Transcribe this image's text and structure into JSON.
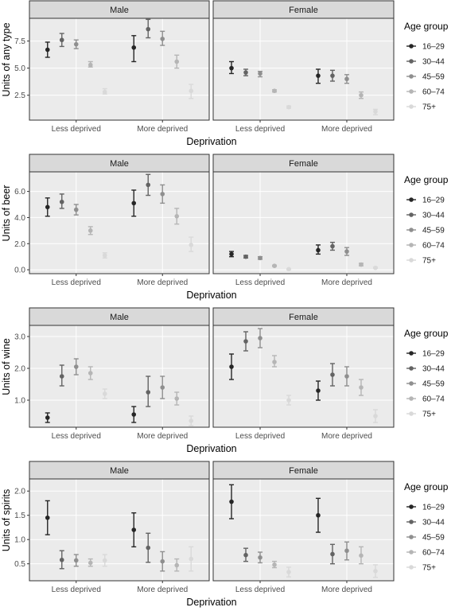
{
  "colors": {
    "panel_bg": "#ebebeb",
    "grid_major": "#ffffff",
    "strip_bg": "#d9d9d9",
    "strip_border": "#333333",
    "age_16_29": "#262626",
    "age_30_44": "#636363",
    "age_45_59": "#8f8f8f",
    "age_60_74": "#b5b5b5",
    "age_75_plus": "#d9d9d9"
  },
  "chart_data": [
    {
      "type": "scatter",
      "ylabel": "Units of any type",
      "xlabel": "Deprivation",
      "categories": [
        "Less deprived",
        "More deprived"
      ],
      "ylim": [
        0.2,
        9.6
      ],
      "yticks": [
        2.5,
        5.0,
        7.5
      ],
      "ytick_labels": [
        "2.5",
        "5.0",
        "7.5"
      ],
      "legend_title": "Age group",
      "panels": [
        {
          "label": "Male",
          "series": [
            {
              "name": "16–29",
              "values": [
                6.7,
                6.9
              ],
              "lower": [
                6.0,
                5.6
              ],
              "upper": [
                7.4,
                8.0
              ]
            },
            {
              "name": "30–44",
              "values": [
                7.6,
                8.6
              ],
              "lower": [
                7.0,
                7.8
              ],
              "upper": [
                8.2,
                9.5
              ]
            },
            {
              "name": "45–59",
              "values": [
                7.2,
                7.7
              ],
              "lower": [
                6.8,
                7.1
              ],
              "upper": [
                7.6,
                8.4
              ]
            },
            {
              "name": "60–74",
              "values": [
                5.3,
                5.6
              ],
              "lower": [
                5.1,
                5.0
              ],
              "upper": [
                5.6,
                6.2
              ]
            },
            {
              "name": "75+",
              "values": [
                2.8,
                2.9
              ],
              "lower": [
                2.6,
                2.2
              ],
              "upper": [
                3.1,
                3.5
              ]
            }
          ]
        },
        {
          "label": "Female",
          "series": [
            {
              "name": "16–29",
              "values": [
                5.0,
                4.3
              ],
              "lower": [
                4.5,
                3.6
              ],
              "upper": [
                5.6,
                4.9
              ]
            },
            {
              "name": "30–44",
              "values": [
                4.6,
                4.3
              ],
              "lower": [
                4.3,
                3.8
              ],
              "upper": [
                4.9,
                4.8
              ]
            },
            {
              "name": "45–59",
              "values": [
                4.5,
                4.0
              ],
              "lower": [
                4.2,
                3.6
              ],
              "upper": [
                4.7,
                4.4
              ]
            },
            {
              "name": "60–74",
              "values": [
                2.9,
                2.5
              ],
              "lower": [
                2.8,
                2.2
              ],
              "upper": [
                3.0,
                2.8
              ]
            },
            {
              "name": "75+",
              "values": [
                1.4,
                1.0
              ],
              "lower": [
                1.3,
                0.7
              ],
              "upper": [
                1.5,
                1.2
              ]
            }
          ]
        }
      ]
    },
    {
      "type": "scatter",
      "ylabel": "Units of beer",
      "xlabel": "Deprivation",
      "categories": [
        "Less deprived",
        "More deprived"
      ],
      "ylim": [
        -0.3,
        7.5
      ],
      "yticks": [
        0.0,
        2.0,
        4.0,
        6.0
      ],
      "ytick_labels": [
        "0.0",
        "2.0",
        "4.0",
        "6.0"
      ],
      "legend_title": "Age group",
      "panels": [
        {
          "label": "Male",
          "series": [
            {
              "name": "16–29",
              "values": [
                4.8,
                5.1
              ],
              "lower": [
                4.1,
                4.1
              ],
              "upper": [
                5.5,
                6.1
              ]
            },
            {
              "name": "30–44",
              "values": [
                5.2,
                6.5
              ],
              "lower": [
                4.7,
                5.7
              ],
              "upper": [
                5.8,
                7.3
              ]
            },
            {
              "name": "45–59",
              "values": [
                4.6,
                5.8
              ],
              "lower": [
                4.2,
                5.1
              ],
              "upper": [
                5.0,
                6.5
              ]
            },
            {
              "name": "60–74",
              "values": [
                3.0,
                4.1
              ],
              "lower": [
                2.7,
                3.5
              ],
              "upper": [
                3.3,
                4.7
              ]
            },
            {
              "name": "75+",
              "values": [
                1.1,
                1.9
              ],
              "lower": [
                0.9,
                1.4
              ],
              "upper": [
                1.3,
                2.5
              ]
            }
          ]
        },
        {
          "label": "Female",
          "series": [
            {
              "name": "16–29",
              "values": [
                1.2,
                1.5
              ],
              "lower": [
                1.0,
                1.2
              ],
              "upper": [
                1.4,
                1.9
              ]
            },
            {
              "name": "30–44",
              "values": [
                1.0,
                1.8
              ],
              "lower": [
                0.9,
                1.5
              ],
              "upper": [
                1.1,
                2.1
              ]
            },
            {
              "name": "45–59",
              "values": [
                0.9,
                1.4
              ],
              "lower": [
                0.8,
                1.1
              ],
              "upper": [
                1.0,
                1.7
              ]
            },
            {
              "name": "60–74",
              "values": [
                0.3,
                0.4
              ],
              "lower": [
                0.25,
                0.3
              ],
              "upper": [
                0.35,
                0.5
              ]
            },
            {
              "name": "75+",
              "values": [
                0.05,
                0.15
              ],
              "lower": [
                0.02,
                0.1
              ],
              "upper": [
                0.08,
                0.2
              ]
            }
          ]
        }
      ]
    },
    {
      "type": "scatter",
      "ylabel": "Units of wine",
      "xlabel": "Deprivation",
      "categories": [
        "Less deprived",
        "More deprived"
      ],
      "ylim": [
        0.15,
        3.35
      ],
      "yticks": [
        1.0,
        2.0,
        3.0
      ],
      "ytick_labels": [
        "1.0",
        "2.0",
        "3.0"
      ],
      "legend_title": "Age group",
      "panels": [
        {
          "label": "Male",
          "series": [
            {
              "name": "16–29",
              "values": [
                0.45,
                0.55
              ],
              "lower": [
                0.3,
                0.3
              ],
              "upper": [
                0.6,
                0.8
              ]
            },
            {
              "name": "30–44",
              "values": [
                1.75,
                1.25
              ],
              "lower": [
                1.45,
                0.8
              ],
              "upper": [
                2.1,
                1.75
              ]
            },
            {
              "name": "45–59",
              "values": [
                2.05,
                1.4
              ],
              "lower": [
                1.8,
                1.05
              ],
              "upper": [
                2.3,
                1.75
              ]
            },
            {
              "name": "60–74",
              "values": [
                1.85,
                1.05
              ],
              "lower": [
                1.65,
                0.85
              ],
              "upper": [
                2.05,
                1.25
              ]
            },
            {
              "name": "75+",
              "values": [
                1.2,
                0.35
              ],
              "lower": [
                1.05,
                0.2
              ],
              "upper": [
                1.35,
                0.5
              ]
            }
          ]
        },
        {
          "label": "Female",
          "series": [
            {
              "name": "16–29",
              "values": [
                2.05,
                1.3
              ],
              "lower": [
                1.65,
                1.0
              ],
              "upper": [
                2.45,
                1.6
              ]
            },
            {
              "name": "30–44",
              "values": [
                2.85,
                1.8
              ],
              "lower": [
                2.55,
                1.45
              ],
              "upper": [
                3.15,
                2.15
              ]
            },
            {
              "name": "45–59",
              "values": [
                2.95,
                1.75
              ],
              "lower": [
                2.65,
                1.45
              ],
              "upper": [
                3.25,
                2.05
              ]
            },
            {
              "name": "60–74",
              "values": [
                2.2,
                1.4
              ],
              "lower": [
                2.05,
                1.15
              ],
              "upper": [
                2.4,
                1.65
              ]
            },
            {
              "name": "75+",
              "values": [
                1.0,
                0.5
              ],
              "lower": [
                0.85,
                0.3
              ],
              "upper": [
                1.15,
                0.7
              ]
            }
          ]
        }
      ]
    },
    {
      "type": "scatter",
      "ylabel": "Units of spirits",
      "xlabel": "Deprivation",
      "categories": [
        "Less deprived",
        "More deprived"
      ],
      "ylim": [
        0.15,
        2.25
      ],
      "yticks": [
        0.5,
        1.0,
        1.5,
        2.0
      ],
      "ytick_labels": [
        "0.5",
        "1.0",
        "1.5",
        "2.0"
      ],
      "legend_title": "Age group",
      "panels": [
        {
          "label": "Male",
          "series": [
            {
              "name": "16–29",
              "values": [
                1.45,
                1.2
              ],
              "lower": [
                1.1,
                0.85
              ],
              "upper": [
                1.8,
                1.55
              ]
            },
            {
              "name": "30–44",
              "values": [
                0.58,
                0.83
              ],
              "lower": [
                0.4,
                0.53
              ],
              "upper": [
                0.77,
                1.13
              ]
            },
            {
              "name": "45–59",
              "values": [
                0.57,
                0.55
              ],
              "lower": [
                0.45,
                0.35
              ],
              "upper": [
                0.69,
                0.75
              ]
            },
            {
              "name": "60–74",
              "values": [
                0.52,
                0.47
              ],
              "lower": [
                0.45,
                0.35
              ],
              "upper": [
                0.6,
                0.6
              ]
            },
            {
              "name": "75+",
              "values": [
                0.57,
                0.6
              ],
              "lower": [
                0.45,
                0.35
              ],
              "upper": [
                0.69,
                0.85
              ]
            }
          ]
        },
        {
          "label": "Female",
          "series": [
            {
              "name": "16–29",
              "values": [
                1.78,
                1.5
              ],
              "lower": [
                1.43,
                1.15
              ],
              "upper": [
                2.13,
                1.85
              ]
            },
            {
              "name": "30–44",
              "values": [
                0.68,
                0.7
              ],
              "lower": [
                0.55,
                0.5
              ],
              "upper": [
                0.82,
                0.9
              ]
            },
            {
              "name": "45–59",
              "values": [
                0.63,
                0.77
              ],
              "lower": [
                0.52,
                0.58
              ],
              "upper": [
                0.74,
                0.95
              ]
            },
            {
              "name": "60–74",
              "values": [
                0.48,
                0.67
              ],
              "lower": [
                0.42,
                0.5
              ],
              "upper": [
                0.55,
                0.85
              ]
            },
            {
              "name": "75+",
              "values": [
                0.33,
                0.35
              ],
              "lower": [
                0.23,
                0.22
              ],
              "upper": [
                0.43,
                0.48
              ]
            }
          ]
        }
      ]
    }
  ]
}
